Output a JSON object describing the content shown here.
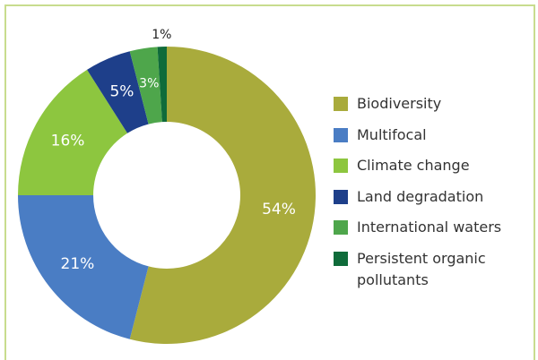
{
  "chart_data": {
    "type": "donut",
    "categories": [
      "Biodiversity",
      "Multifocal",
      "Climate change",
      "Land degradation",
      "International waters",
      "Persistent organic pollutants"
    ],
    "values": [
      54,
      21,
      16,
      5,
      3,
      1
    ],
    "value_labels": [
      "54%",
      "21%",
      "16%",
      "5%",
      "3%",
      "1%"
    ],
    "colors": [
      "#a9ab3c",
      "#4a7dc4",
      "#8dc63f",
      "#1e3f8a",
      "#4ea64b",
      "#0f6b3a"
    ]
  }
}
